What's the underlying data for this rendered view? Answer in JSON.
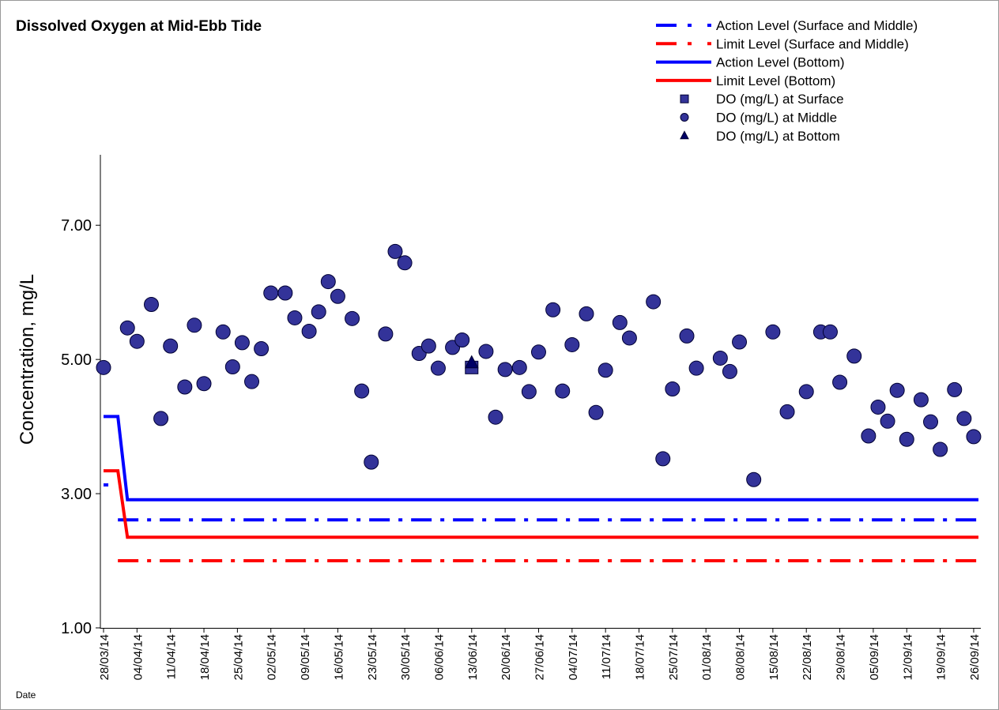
{
  "chart_data": {
    "type": "scatter",
    "title": "Dissolved Oxygen at Mid-Ebb Tide",
    "y_label": "Concentration, mg/L",
    "x_label": "Date",
    "legend": "top-right",
    "grid": false,
    "ylim": [
      1,
      8.05
    ],
    "yticks": [
      {
        "value": 1,
        "label": "1.00"
      },
      {
        "value": 3,
        "label": "3.00"
      },
      {
        "value": 5,
        "label": "5.00"
      },
      {
        "value": 7,
        "label": "7.00"
      }
    ],
    "xlim": [
      "28/03/14",
      "27/09/14"
    ],
    "xticks": [
      "28/03/14",
      "04/04/14",
      "11/04/14",
      "18/04/14",
      "25/04/14",
      "02/05/14",
      "09/05/14",
      "16/05/14",
      "23/05/14",
      "30/05/14",
      "06/06/14",
      "13/06/14",
      "20/06/14",
      "27/06/14",
      "04/07/14",
      "11/07/14",
      "18/07/14",
      "25/07/14",
      "01/08/14",
      "08/08/14",
      "15/08/14",
      "22/08/14",
      "29/08/14",
      "05/09/14",
      "12/09/14",
      "19/09/14",
      "26/09/14"
    ],
    "series": [
      {
        "name": "Action Level (Surface and Middle)",
        "color": "#0000ff",
        "style": "dash-dot",
        "x": [
          "28/03/14",
          "29/03/14",
          "30/03/14",
          "31/03/14",
          "27/09/14"
        ],
        "values": [
          3.13,
          3.13,
          null,
          2.61,
          2.61
        ]
      },
      {
        "name": "Limit Level (Surface and Middle)",
        "color": "#ff0000",
        "style": "dash-dot",
        "x": [
          "31/03/14",
          "27/09/14"
        ],
        "values": [
          2.0,
          2.0
        ]
      },
      {
        "name": "Action Level (Bottom)",
        "color": "#0000ff",
        "style": "line",
        "x": [
          "28/03/14",
          "31/03/14",
          "02/04/14",
          "27/09/14"
        ],
        "values": [
          4.15,
          4.15,
          2.91,
          2.91
        ]
      },
      {
        "name": "Limit Level (Bottom)",
        "color": "#ff0000",
        "style": "line",
        "x": [
          "28/03/14",
          "31/03/14",
          "02/04/14",
          "27/09/14"
        ],
        "values": [
          3.34,
          3.34,
          2.35,
          2.35
        ]
      },
      {
        "name": "DO (mg/L) at Surface",
        "color": "#333399",
        "style": "square",
        "x": [
          "13/06/14"
        ],
        "values": [
          4.88
        ]
      },
      {
        "name": "DO (mg/L) at Middle",
        "color": "#333399",
        "style": "circle",
        "x": [
          "28/03/14",
          "02/04/14",
          "04/04/14",
          "07/04/14",
          "09/04/14",
          "11/04/14",
          "14/04/14",
          "16/04/14",
          "18/04/14",
          "22/04/14",
          "24/04/14",
          "26/04/14",
          "28/04/14",
          "30/04/14",
          "02/05/14",
          "05/05/14",
          "07/05/14",
          "10/05/14",
          "12/05/14",
          "14/05/14",
          "16/05/14",
          "19/05/14",
          "21/05/14",
          "23/05/14",
          "26/05/14",
          "28/05/14",
          "30/05/14",
          "02/06/14",
          "04/06/14",
          "06/06/14",
          "09/06/14",
          "11/06/14",
          "16/06/14",
          "18/06/14",
          "20/06/14",
          "23/06/14",
          "25/06/14",
          "27/06/14",
          "30/06/14",
          "02/07/14",
          "04/07/14",
          "07/07/14",
          "09/07/14",
          "11/07/14",
          "14/07/14",
          "16/07/14",
          "21/07/14",
          "23/07/14",
          "25/07/14",
          "28/07/14",
          "30/07/14",
          "04/08/14",
          "06/08/14",
          "08/08/14",
          "11/08/14",
          "15/08/14",
          "18/08/14",
          "22/08/14",
          "25/08/14",
          "27/08/14",
          "29/08/14",
          "01/09/14",
          "04/09/14",
          "06/09/14",
          "08/09/14",
          "10/09/14",
          "12/09/14",
          "15/09/14",
          "17/09/14",
          "19/09/14",
          "22/09/14",
          "24/09/14",
          "26/09/14"
        ],
        "values": [
          4.88,
          5.47,
          5.27,
          5.82,
          4.12,
          5.2,
          4.59,
          5.51,
          4.64,
          5.41,
          4.89,
          5.25,
          4.67,
          5.16,
          5.99,
          5.99,
          5.62,
          5.42,
          5.71,
          6.16,
          5.94,
          5.61,
          4.53,
          3.47,
          5.38,
          6.61,
          6.44,
          5.09,
          5.2,
          4.87,
          5.18,
          5.29,
          5.12,
          4.14,
          4.85,
          4.88,
          4.52,
          5.11,
          5.74,
          4.53,
          5.22,
          5.68,
          4.21,
          4.84,
          5.55,
          5.32,
          5.86,
          3.52,
          4.56,
          5.35,
          4.87,
          5.02,
          4.82,
          5.26,
          3.21,
          5.41,
          4.22,
          4.52,
          5.41,
          5.41,
          4.66,
          5.05,
          3.86,
          4.29,
          4.08,
          4.54,
          3.81,
          4.4,
          4.07,
          3.66,
          4.55,
          4.12,
          3.85
        ]
      },
      {
        "name": "DO (mg/L) at Bottom",
        "color": "#000066",
        "style": "triangle",
        "x": [
          "13/06/14"
        ],
        "values": [
          4.95
        ]
      }
    ]
  }
}
